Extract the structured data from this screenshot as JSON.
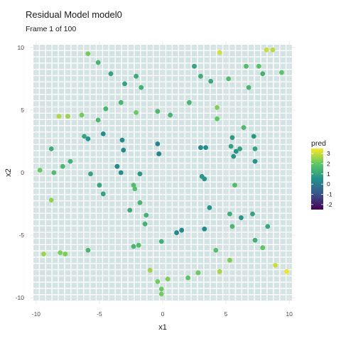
{
  "chart_data": {
    "type": "scatter",
    "title": "Residual Model model0",
    "subtitle": "Frame 1 of 100",
    "xlabel": "x1",
    "ylabel": "x2",
    "xlim": [
      -10.5,
      10.5
    ],
    "ylim": [
      -10.5,
      10.5
    ],
    "x_ticks": [
      -10,
      -5,
      0,
      5,
      10
    ],
    "y_ticks": [
      -10,
      -5,
      0,
      5,
      10
    ],
    "grid": true,
    "background_grid": {
      "spacing": 0.5,
      "color": "#d3e3e3"
    },
    "legend": {
      "title": "pred",
      "placement": "right",
      "ticks": [
        3,
        2,
        1,
        0,
        -1,
        -2
      ],
      "range": [
        -2.5,
        3.5
      ]
    },
    "colorscale": [
      "#440154",
      "#3b528b",
      "#21908c",
      "#5dc863",
      "#fde725"
    ],
    "points": [
      {
        "x": -5.9,
        "y": 9.5,
        "pred": 2.2
      },
      {
        "x": -5.1,
        "y": 8.8,
        "pred": 1.5
      },
      {
        "x": -4.1,
        "y": 7.9,
        "pred": 1.0
      },
      {
        "x": -2.1,
        "y": 7.7,
        "pred": 1.2
      },
      {
        "x": -3.0,
        "y": 7.1,
        "pred": 1.0
      },
      {
        "x": -1.7,
        "y": 6.8,
        "pred": 1.4
      },
      {
        "x": -4.5,
        "y": 5.1,
        "pred": 1.5
      },
      {
        "x": -3.3,
        "y": 5.6,
        "pred": 1.5
      },
      {
        "x": -2.1,
        "y": 4.8,
        "pred": 2.1
      },
      {
        "x": -0.4,
        "y": 4.9,
        "pred": 1.6
      },
      {
        "x": 0.6,
        "y": 4.6,
        "pred": 1.5
      },
      {
        "x": -5.1,
        "y": 4.2,
        "pred": 1.6
      },
      {
        "x": -6.4,
        "y": 4.6,
        "pred": 2.2
      },
      {
        "x": -7.5,
        "y": 4.5,
        "pred": 2.6
      },
      {
        "x": -8.2,
        "y": 4.5,
        "pred": 2.8
      },
      {
        "x": -6.2,
        "y": 2.9,
        "pred": 1.1
      },
      {
        "x": -5.9,
        "y": 2.7,
        "pred": 0.6
      },
      {
        "x": -4.7,
        "y": 3.1,
        "pred": 0.4
      },
      {
        "x": -3.2,
        "y": 2.6,
        "pred": 0.4
      },
      {
        "x": -3.1,
        "y": 1.8,
        "pred": 0.3
      },
      {
        "x": -0.4,
        "y": 2.3,
        "pred": 0.2
      },
      {
        "x": -0.3,
        "y": 1.5,
        "pred": 0.2
      },
      {
        "x": -8.8,
        "y": 1.9,
        "pred": 1.3
      },
      {
        "x": -7.3,
        "y": 0.9,
        "pred": 1.4
      },
      {
        "x": -7.9,
        "y": 0.5,
        "pred": 1.6
      },
      {
        "x": -9.7,
        "y": 0.2,
        "pred": 2.1
      },
      {
        "x": -8.6,
        "y": 0.0,
        "pred": 1.7
      },
      {
        "x": -5.7,
        "y": -0.1,
        "pred": 1.0
      },
      {
        "x": -3.6,
        "y": 0.5,
        "pred": 0.3
      },
      {
        "x": -3.3,
        "y": 0.0,
        "pred": 0.4
      },
      {
        "x": -1.8,
        "y": -0.1,
        "pred": 0.7
      },
      {
        "x": -5.0,
        "y": -1.0,
        "pred": 1.1
      },
      {
        "x": -4.7,
        "y": -1.7,
        "pred": 1.0
      },
      {
        "x": -2.3,
        "y": -1.0,
        "pred": 1.7
      },
      {
        "x": -2.2,
        "y": -1.3,
        "pred": 1.8
      },
      {
        "x": -1.8,
        "y": -2.4,
        "pred": 1.5
      },
      {
        "x": -8.8,
        "y": -2.2,
        "pred": 2.5
      },
      {
        "x": -2.6,
        "y": -3.0,
        "pred": 1.2
      },
      {
        "x": -1.3,
        "y": -3.4,
        "pred": 1.4
      },
      {
        "x": -1.4,
        "y": -4.1,
        "pred": 1.4
      },
      {
        "x": 1.1,
        "y": -4.8,
        "pred": 0.3
      },
      {
        "x": 1.5,
        "y": -4.6,
        "pred": 0.3
      },
      {
        "x": 3.3,
        "y": -4.5,
        "pred": 0.4
      },
      {
        "x": -0.1,
        "y": -5.5,
        "pred": 1.3
      },
      {
        "x": -2.3,
        "y": -5.9,
        "pred": 1.5
      },
      {
        "x": -1.9,
        "y": -5.8,
        "pred": 1.7
      },
      {
        "x": -5.9,
        "y": -6.2,
        "pred": 1.5
      },
      {
        "x": -7.7,
        "y": -6.5,
        "pred": 2.3
      },
      {
        "x": -8.1,
        "y": -6.4,
        "pred": 2.3
      },
      {
        "x": -9.4,
        "y": -6.5,
        "pred": 2.6
      },
      {
        "x": -1.0,
        "y": -7.8,
        "pred": 2.6
      },
      {
        "x": -0.4,
        "y": -8.7,
        "pred": 2.2
      },
      {
        "x": 0.4,
        "y": -8.5,
        "pred": 2.3
      },
      {
        "x": -0.1,
        "y": -9.3,
        "pred": 2.1
      },
      {
        "x": -0.1,
        "y": -9.7,
        "pred": 2.2
      },
      {
        "x": 2.0,
        "y": -8.4,
        "pred": 1.9
      },
      {
        "x": 2.8,
        "y": -8.0,
        "pred": 2.1
      },
      {
        "x": 4.5,
        "y": -7.9,
        "pred": 2.7
      },
      {
        "x": 5.3,
        "y": -7.0,
        "pred": 2.3
      },
      {
        "x": 4.2,
        "y": -6.2,
        "pred": 1.8
      },
      {
        "x": 7.9,
        "y": -6.0,
        "pred": 2.0
      },
      {
        "x": 7.3,
        "y": -5.4,
        "pred": 1.3
      },
      {
        "x": 5.5,
        "y": -4.3,
        "pred": 1.5
      },
      {
        "x": 8.3,
        "y": -4.3,
        "pred": 1.1
      },
      {
        "x": 6.2,
        "y": -3.6,
        "pred": 0.7
      },
      {
        "x": 7.1,
        "y": -3.3,
        "pred": 1.0
      },
      {
        "x": 5.3,
        "y": -3.3,
        "pred": 1.3
      },
      {
        "x": 3.7,
        "y": -2.8,
        "pred": 0.6
      },
      {
        "x": 5.7,
        "y": -1.0,
        "pred": 1.7
      },
      {
        "x": 3.1,
        "y": -0.3,
        "pred": 0.8
      },
      {
        "x": 3.3,
        "y": -0.5,
        "pred": 0.7
      },
      {
        "x": 7.3,
        "y": 0.9,
        "pred": 0.6
      },
      {
        "x": 5.6,
        "y": 1.3,
        "pred": 0.7
      },
      {
        "x": 5.8,
        "y": 1.7,
        "pred": 0.6
      },
      {
        "x": 6.1,
        "y": 1.9,
        "pred": 0.9
      },
      {
        "x": 5.4,
        "y": 2.1,
        "pred": 0.9
      },
      {
        "x": 3.0,
        "y": 2.0,
        "pred": 0.4
      },
      {
        "x": 3.4,
        "y": 2.0,
        "pred": 0.5
      },
      {
        "x": 7.3,
        "y": 1.9,
        "pred": 1.0
      },
      {
        "x": 5.5,
        "y": 2.8,
        "pred": 0.8
      },
      {
        "x": 7.2,
        "y": 2.9,
        "pred": 0.7
      },
      {
        "x": 6.4,
        "y": 3.6,
        "pred": 1.6
      },
      {
        "x": 4.3,
        "y": 4.3,
        "pred": 2.0
      },
      {
        "x": 4.3,
        "y": 5.2,
        "pred": 2.4
      },
      {
        "x": 2.1,
        "y": 5.6,
        "pred": 1.5
      },
      {
        "x": 6.8,
        "y": 6.8,
        "pred": 1.5
      },
      {
        "x": 5.2,
        "y": 7.5,
        "pred": 1.7
      },
      {
        "x": 3.0,
        "y": 7.7,
        "pred": 1.3
      },
      {
        "x": 3.8,
        "y": 7.3,
        "pred": 1.1
      },
      {
        "x": 2.5,
        "y": 8.5,
        "pred": 1.0
      },
      {
        "x": 6.6,
        "y": 8.5,
        "pred": 1.7
      },
      {
        "x": 7.6,
        "y": 8.5,
        "pred": 1.9
      },
      {
        "x": 7.9,
        "y": 7.9,
        "pred": 1.4
      },
      {
        "x": 9.4,
        "y": 8.0,
        "pred": 1.9
      },
      {
        "x": 8.2,
        "y": 9.8,
        "pred": 3.0
      },
      {
        "x": 8.7,
        "y": 9.8,
        "pred": 2.9
      },
      {
        "x": 4.5,
        "y": 9.6,
        "pred": 3.1
      },
      {
        "x": 8.9,
        "y": -7.4,
        "pred": 3.0
      },
      {
        "x": 9.8,
        "y": -7.9,
        "pred": 3.4
      }
    ]
  }
}
